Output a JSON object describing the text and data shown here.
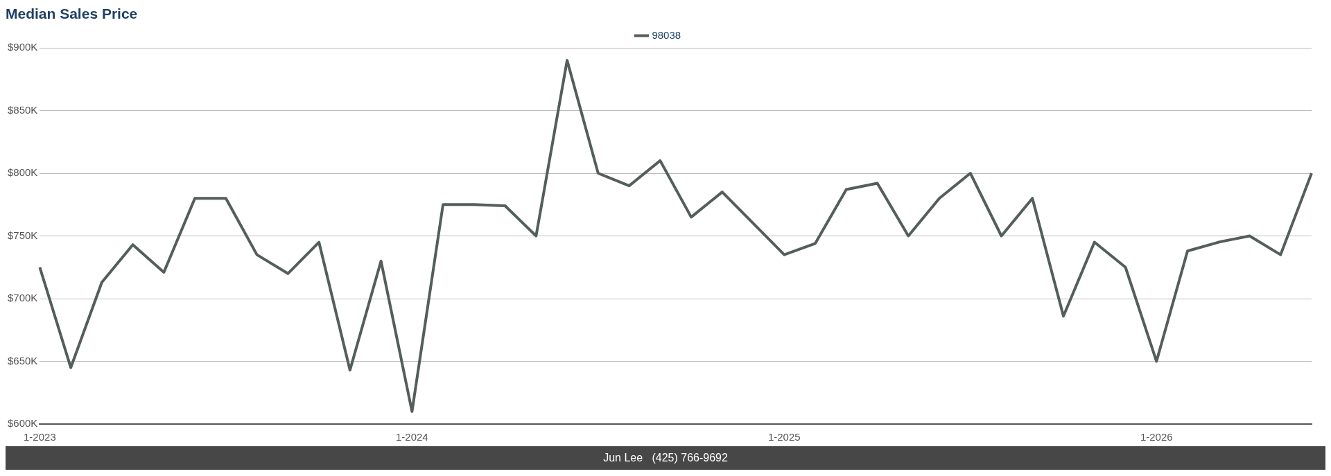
{
  "chart_data": {
    "type": "line",
    "title": "Median Sales Price",
    "categories": [
      "1-2023",
      null,
      null,
      null,
      null,
      null,
      null,
      null,
      null,
      null,
      null,
      null,
      "1-2024",
      null,
      null,
      null,
      null,
      null,
      null,
      null,
      null,
      null,
      null,
      null,
      "1-2025",
      null,
      null,
      null,
      null,
      null,
      null,
      null,
      null,
      null,
      null,
      null,
      "1-2026",
      null,
      null,
      null,
      null,
      null
    ],
    "series": [
      {
        "name": "98038",
        "color": "#545e5a",
        "values": [
          725,
          645,
          713,
          743,
          721,
          780,
          780,
          735,
          720,
          745,
          643,
          730,
          610,
          775,
          775,
          774,
          750,
          890,
          800,
          790,
          810,
          765,
          785,
          760,
          735,
          744,
          787,
          792,
          750,
          780,
          800,
          750,
          780,
          686,
          745,
          725,
          650,
          738,
          745,
          750,
          735,
          800
        ]
      }
    ],
    "ylim": [
      600,
      900
    ],
    "yticks": [
      {
        "value": 600,
        "label": "$600K"
      },
      {
        "value": 650,
        "label": "$650K"
      },
      {
        "value": 700,
        "label": "$700K"
      },
      {
        "value": 750,
        "label": "$750K"
      },
      {
        "value": 800,
        "label": "$800K"
      },
      {
        "value": 850,
        "label": "$850K"
      },
      {
        "value": 900,
        "label": "$900K"
      }
    ],
    "grid": "y",
    "legend": "top",
    "marker": "none",
    "line_style": "solid",
    "annotations": [
      "Jun Lee   (425) 766-9692"
    ]
  }
}
